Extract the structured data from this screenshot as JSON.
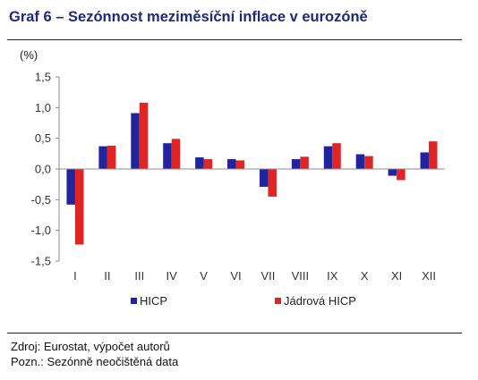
{
  "title": "Graf 6 – Sezónnost meziměsíční inflace v eurozóně",
  "notes": {
    "source": "Zdroj: Eurostat, výpočet autorů",
    "note": "Pozn.: Sezónně neočištěná data"
  },
  "colors": {
    "series1": "#22249e",
    "series2": "#e02525"
  },
  "chart_data": {
    "type": "bar",
    "ylabel": "(%)",
    "ylim": [
      -1.5,
      1.5
    ],
    "yticks": [
      1.5,
      1.0,
      0.5,
      0.0,
      -0.5,
      -1.0,
      -1.5
    ],
    "ytick_labels": [
      "1,5",
      "1,0",
      "0,5",
      "0,0",
      "-0,5",
      "-1,0",
      "-1,5"
    ],
    "categories": [
      "I",
      "II",
      "III",
      "IV",
      "V",
      "VI",
      "VII",
      "VIII",
      "IX",
      "X",
      "XI",
      "XII"
    ],
    "series": [
      {
        "name": "HICP",
        "values": [
          -0.58,
          0.37,
          0.91,
          0.42,
          0.19,
          0.16,
          -0.29,
          0.16,
          0.37,
          0.24,
          -0.11,
          0.27
        ]
      },
      {
        "name": "Jádrová HICP",
        "values": [
          -1.23,
          0.38,
          1.08,
          0.49,
          0.16,
          0.14,
          -0.45,
          0.2,
          0.42,
          0.21,
          -0.18,
          0.45
        ]
      }
    ],
    "legend_position": "bottom",
    "grid": false
  }
}
